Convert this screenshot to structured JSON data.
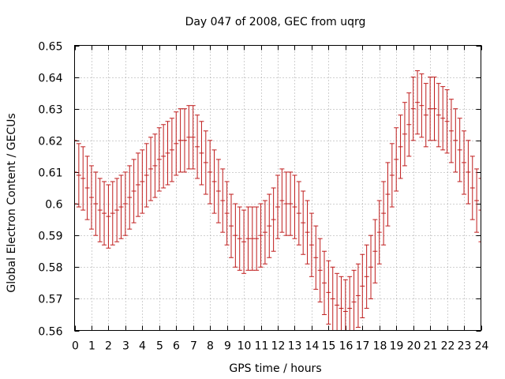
{
  "chart_data": {
    "type": "errorbar",
    "title": "Day 047 of 2008, GEC from uqrg",
    "xlabel": "GPS time / hours",
    "ylabel": "Global Electron Content / GECUs",
    "xlim": [
      0,
      24
    ],
    "ylim": [
      0.56,
      0.65
    ],
    "xticks": [
      "0",
      "1",
      "2",
      "3",
      "4",
      "5",
      "6",
      "7",
      "8",
      "9",
      "10",
      "11",
      "12",
      "13",
      "14",
      "15",
      "16",
      "17",
      "18",
      "19",
      "20",
      "21",
      "22",
      "23",
      "24"
    ],
    "yticks": [
      "0.56",
      "0.57",
      "0.58",
      "0.59",
      "0.6",
      "0.61",
      "0.62",
      "0.63",
      "0.64",
      "0.65"
    ],
    "grid": true,
    "error": 0.01,
    "series": [
      {
        "x": [
          0,
          0.25,
          0.5,
          0.75,
          1,
          1.25,
          1.5,
          1.75,
          2,
          2.25,
          2.5,
          2.75,
          3,
          3.25,
          3.5,
          3.75,
          4,
          4.25,
          4.5,
          4.75,
          5,
          5.25,
          5.5,
          5.75,
          6,
          6.25,
          6.5,
          6.75,
          7,
          7.25,
          7.5,
          7.75,
          8,
          8.25,
          8.5,
          8.75,
          9,
          9.25,
          9.5,
          9.75,
          10,
          10.25,
          10.5,
          10.75,
          11,
          11.25,
          11.5,
          11.75,
          12,
          12.25,
          12.5,
          12.75,
          13,
          13.25,
          13.5,
          13.75,
          14,
          14.25,
          14.5,
          14.75,
          15,
          15.25,
          15.5,
          15.75,
          16,
          16.25,
          16.5,
          16.75,
          17,
          17.25,
          17.5,
          17.75,
          18,
          18.25,
          18.5,
          18.75,
          19,
          19.25,
          19.5,
          19.75,
          20,
          20.25,
          20.5,
          20.75,
          21,
          21.25,
          21.5,
          21.75,
          22,
          22.25,
          22.5,
          22.75,
          23,
          23.25,
          23.5,
          23.75,
          24
        ],
        "values": [
          0.61,
          0.609,
          0.608,
          0.605,
          0.602,
          0.6,
          0.598,
          0.597,
          0.596,
          0.597,
          0.598,
          0.599,
          0.6,
          0.602,
          0.604,
          0.606,
          0.607,
          0.609,
          0.611,
          0.612,
          0.614,
          0.615,
          0.616,
          0.617,
          0.619,
          0.62,
          0.62,
          0.621,
          0.621,
          0.618,
          0.616,
          0.613,
          0.61,
          0.607,
          0.604,
          0.601,
          0.597,
          0.593,
          0.59,
          0.589,
          0.588,
          0.589,
          0.589,
          0.589,
          0.59,
          0.591,
          0.593,
          0.595,
          0.599,
          0.601,
          0.6,
          0.6,
          0.599,
          0.597,
          0.594,
          0.591,
          0.587,
          0.583,
          0.579,
          0.575,
          0.572,
          0.57,
          0.568,
          0.567,
          0.566,
          0.567,
          0.569,
          0.571,
          0.574,
          0.577,
          0.58,
          0.585,
          0.591,
          0.597,
          0.603,
          0.609,
          0.614,
          0.618,
          0.622,
          0.625,
          0.63,
          0.632,
          0.631,
          0.628,
          0.63,
          0.63,
          0.628,
          0.627,
          0.626,
          0.623,
          0.62,
          0.617,
          0.613,
          0.61,
          0.605,
          0.601,
          0.598
        ]
      }
    ]
  }
}
